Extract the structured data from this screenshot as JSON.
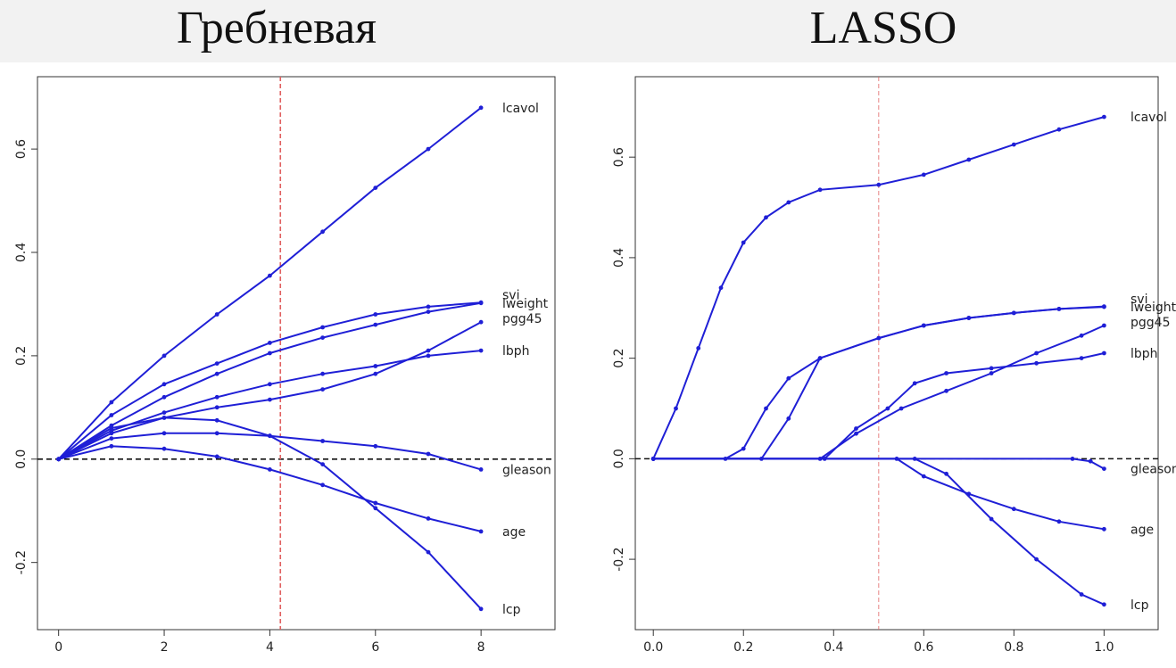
{
  "titles": {
    "left": "Гребневая",
    "right": "LASSO"
  },
  "colors": {
    "series": "#1f1fd6",
    "reference_line": "#e06060",
    "zero_line": "#111111",
    "banner": "#f2f2f2"
  },
  "chart_data": [
    {
      "type": "line",
      "title": "Гребневая",
      "xlim": [
        -0.4,
        9.4
      ],
      "ylim": [
        -0.33,
        0.74
      ],
      "xticks": [
        0,
        2,
        4,
        6,
        8
      ],
      "yticks": [
        -0.2,
        0.0,
        0.2,
        0.4,
        0.6
      ],
      "xticklabels": [
        "0",
        "2",
        "4",
        "6",
        "8"
      ],
      "yticklabels": [
        "-0.2",
        "0.0",
        "0.2",
        "0.4",
        "0.6"
      ],
      "zero_line": 0,
      "reference_x": 4.2,
      "x": [
        0,
        1,
        2,
        3,
        4,
        5,
        6,
        7,
        8
      ],
      "series": [
        {
          "name": "lcavol",
          "values": [
            0,
            0.11,
            0.2,
            0.28,
            0.355,
            0.44,
            0.525,
            0.6,
            0.68
          ]
        },
        {
          "name": "svi",
          "values": [
            0,
            0.085,
            0.145,
            0.185,
            0.225,
            0.255,
            0.28,
            0.295,
            0.303
          ]
        },
        {
          "name": "lweight",
          "values": [
            0,
            0.065,
            0.12,
            0.165,
            0.205,
            0.235,
            0.26,
            0.285,
            0.302
          ]
        },
        {
          "name": "pgg45",
          "values": [
            0,
            0.05,
            0.08,
            0.1,
            0.115,
            0.135,
            0.165,
            0.21,
            0.265
          ]
        },
        {
          "name": "lbph",
          "values": [
            0,
            0.055,
            0.09,
            0.12,
            0.145,
            0.165,
            0.18,
            0.2,
            0.21
          ]
        },
        {
          "name": "gleason",
          "values": [
            0,
            0.04,
            0.05,
            0.05,
            0.045,
            0.035,
            0.025,
            0.01,
            -0.02
          ]
        },
        {
          "name": "age",
          "values": [
            0,
            0.025,
            0.02,
            0.005,
            -0.02,
            -0.05,
            -0.085,
            -0.115,
            -0.14
          ]
        },
        {
          "name": "lcp",
          "values": [
            0,
            0.06,
            0.08,
            0.075,
            0.045,
            -0.01,
            -0.095,
            -0.18,
            -0.29
          ]
        }
      ],
      "end_labels": [
        {
          "text": "lcavol",
          "y": 0.68
        },
        {
          "text": "svi",
          "y": 0.318
        },
        {
          "text": "lweight",
          "y": 0.302
        },
        {
          "text": "pgg45",
          "y": 0.272
        },
        {
          "text": "lbph",
          "y": 0.21
        },
        {
          "text": "gleason",
          "y": -0.02
        },
        {
          "text": "age",
          "y": -0.14
        },
        {
          "text": "lcp",
          "y": -0.29
        }
      ]
    },
    {
      "type": "line",
      "title": "LASSO",
      "xlim": [
        -0.04,
        1.12
      ],
      "ylim": [
        -0.34,
        0.76
      ],
      "xticks": [
        0.0,
        0.2,
        0.4,
        0.6,
        0.8,
        1.0
      ],
      "yticks": [
        -0.2,
        0.0,
        0.2,
        0.4,
        0.6
      ],
      "xticklabels": [
        "0.0",
        "0.2",
        "0.4",
        "0.6",
        "0.8",
        "1.0"
      ],
      "yticklabels": [
        "-0.2",
        "0.0",
        "0.2",
        "0.4",
        "0.6"
      ],
      "zero_line": 0,
      "reference_x": 0.5,
      "series": [
        {
          "name": "lcavol",
          "points": [
            [
              0,
              0
            ],
            [
              0.05,
              0.1
            ],
            [
              0.1,
              0.22
            ],
            [
              0.15,
              0.34
            ],
            [
              0.2,
              0.43
            ],
            [
              0.25,
              0.48
            ],
            [
              0.3,
              0.51
            ],
            [
              0.37,
              0.535
            ],
            [
              0.5,
              0.545
            ],
            [
              0.6,
              0.565
            ],
            [
              0.7,
              0.595
            ],
            [
              0.8,
              0.625
            ],
            [
              0.9,
              0.655
            ],
            [
              1.0,
              0.68
            ]
          ]
        },
        {
          "name": "svi",
          "points": [
            [
              0,
              0
            ],
            [
              0.24,
              0
            ],
            [
              0.3,
              0.08
            ],
            [
              0.37,
              0.2
            ],
            [
              0.5,
              0.24
            ],
            [
              0.6,
              0.265
            ],
            [
              0.7,
              0.28
            ],
            [
              0.8,
              0.29
            ],
            [
              0.9,
              0.298
            ],
            [
              1.0,
              0.303
            ]
          ]
        },
        {
          "name": "lweight",
          "points": [
            [
              0,
              0
            ],
            [
              0.16,
              0
            ],
            [
              0.2,
              0.02
            ],
            [
              0.25,
              0.1
            ],
            [
              0.3,
              0.16
            ],
            [
              0.37,
              0.2
            ],
            [
              0.5,
              0.24
            ],
            [
              0.6,
              0.265
            ],
            [
              0.7,
              0.28
            ],
            [
              0.8,
              0.29
            ],
            [
              0.9,
              0.298
            ],
            [
              1.0,
              0.302
            ]
          ]
        },
        {
          "name": "pgg45",
          "points": [
            [
              0,
              0
            ],
            [
              0.37,
              0
            ],
            [
              0.45,
              0.05
            ],
            [
              0.55,
              0.1
            ],
            [
              0.65,
              0.135
            ],
            [
              0.75,
              0.17
            ],
            [
              0.85,
              0.21
            ],
            [
              0.95,
              0.245
            ],
            [
              1.0,
              0.265
            ]
          ]
        },
        {
          "name": "lbph",
          "points": [
            [
              0,
              0
            ],
            [
              0.38,
              0
            ],
            [
              0.45,
              0.06
            ],
            [
              0.52,
              0.1
            ],
            [
              0.58,
              0.15
            ],
            [
              0.65,
              0.17
            ],
            [
              0.75,
              0.18
            ],
            [
              0.85,
              0.19
            ],
            [
              0.95,
              0.2
            ],
            [
              1.0,
              0.21
            ]
          ]
        },
        {
          "name": "gleason",
          "points": [
            [
              0,
              0
            ],
            [
              0.93,
              0
            ],
            [
              0.97,
              -0.005
            ],
            [
              1.0,
              -0.02
            ]
          ]
        },
        {
          "name": "age",
          "points": [
            [
              0,
              0
            ],
            [
              0.54,
              0
            ],
            [
              0.6,
              -0.035
            ],
            [
              0.7,
              -0.07
            ],
            [
              0.8,
              -0.1
            ],
            [
              0.9,
              -0.125
            ],
            [
              1.0,
              -0.14
            ]
          ]
        },
        {
          "name": "lcp",
          "points": [
            [
              0,
              0
            ],
            [
              0.58,
              0
            ],
            [
              0.65,
              -0.03
            ],
            [
              0.75,
              -0.12
            ],
            [
              0.85,
              -0.2
            ],
            [
              0.95,
              -0.27
            ],
            [
              1.0,
              -0.29
            ]
          ]
        }
      ],
      "end_labels": [
        {
          "text": "lcavol",
          "y": 0.68
        },
        {
          "text": "svi",
          "y": 0.318
        },
        {
          "text": "lweight",
          "y": 0.302
        },
        {
          "text": "pgg45",
          "y": 0.272
        },
        {
          "text": "lbph",
          "y": 0.21
        },
        {
          "text": "gleason",
          "y": -0.02
        },
        {
          "text": "age",
          "y": -0.14
        },
        {
          "text": "lcp",
          "y": -0.29
        }
      ]
    }
  ]
}
